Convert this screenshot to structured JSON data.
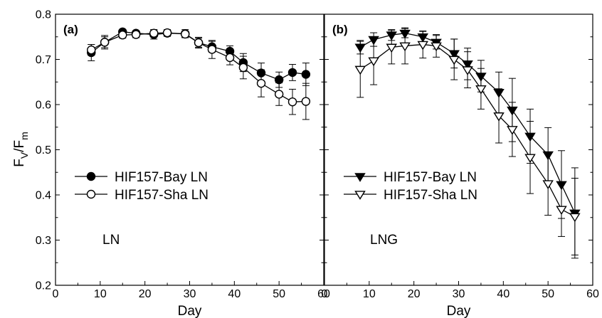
{
  "chart_data": [
    {
      "type": "line",
      "panel_label": "(a)",
      "annotation": "LN",
      "xlabel": "Day",
      "ylabel": "Fv/Fm",
      "ylabel_main": "F",
      "ylabel_sub1": "V",
      "ylabel_sep": "/F",
      "ylabel_sub2": "m",
      "xlim": [
        0,
        60
      ],
      "ylim": [
        0.2,
        0.8
      ],
      "xticks": [
        "0",
        "10",
        "20",
        "30",
        "40",
        "50",
        "60"
      ],
      "yticks": [
        "0.2",
        "0.3",
        "0.4",
        "0.5",
        "0.6",
        "0.7",
        "0.8"
      ],
      "legend_position": "lower-left",
      "series": [
        {
          "name": "HIF157-Bay LN",
          "marker": "circle",
          "filled": true,
          "x": [
            8,
            11,
            15,
            18,
            22,
            25,
            29,
            32,
            35,
            39,
            42,
            46,
            50,
            53,
            56
          ],
          "y": [
            0.715,
            0.738,
            0.761,
            0.758,
            0.755,
            0.758,
            0.757,
            0.737,
            0.728,
            0.718,
            0.693,
            0.67,
            0.655,
            0.671,
            0.667
          ],
          "err": [
            0.018,
            0.012,
            0.005,
            0.005,
            0.01,
            0.007,
            0.009,
            0.01,
            0.012,
            0.012,
            0.02,
            0.022,
            0.017,
            0.018,
            0.025
          ]
        },
        {
          "name": "HIF157-Sha LN",
          "marker": "circle",
          "filled": false,
          "x": [
            8,
            11,
            15,
            18,
            22,
            25,
            29,
            32,
            35,
            39,
            42,
            46,
            50,
            53,
            56
          ],
          "y": [
            0.721,
            0.738,
            0.754,
            0.755,
            0.758,
            0.759,
            0.756,
            0.737,
            0.722,
            0.704,
            0.682,
            0.647,
            0.623,
            0.606,
            0.607
          ],
          "err": [
            0.012,
            0.015,
            0.007,
            0.007,
            0.008,
            0.007,
            0.007,
            0.012,
            0.02,
            0.016,
            0.025,
            0.03,
            0.025,
            0.028,
            0.04
          ]
        }
      ]
    },
    {
      "type": "line",
      "panel_label": "(b)",
      "annotation": "LNG",
      "xlabel": "Day",
      "xlim": [
        0,
        60
      ],
      "ylim": [
        0.2,
        0.8
      ],
      "xticks": [
        "0",
        "10",
        "20",
        "30",
        "40",
        "50",
        "60"
      ],
      "legend_position": "lower-left",
      "series": [
        {
          "name": "HIF157-Bay LN",
          "marker": "triangle-down",
          "filled": true,
          "x": [
            8,
            11,
            15,
            18,
            22,
            25,
            29,
            32,
            35,
            39,
            42,
            46,
            50,
            53,
            56
          ],
          "y": [
            0.727,
            0.744,
            0.754,
            0.758,
            0.75,
            0.738,
            0.713,
            0.69,
            0.663,
            0.627,
            0.588,
            0.53,
            0.489,
            0.423,
            0.36
          ],
          "err": [
            0.015,
            0.015,
            0.012,
            0.01,
            0.012,
            0.015,
            0.032,
            0.035,
            0.035,
            0.045,
            0.07,
            0.06,
            0.06,
            0.075,
            0.1
          ]
        },
        {
          "name": "HIF157-Sha LN",
          "marker": "triangle-down",
          "filled": false,
          "x": [
            8,
            11,
            15,
            18,
            22,
            25,
            29,
            32,
            35,
            39,
            42,
            46,
            50,
            53,
            56
          ],
          "y": [
            0.678,
            0.697,
            0.727,
            0.73,
            0.733,
            0.73,
            0.7,
            0.677,
            0.635,
            0.575,
            0.545,
            0.483,
            0.425,
            0.368,
            0.352
          ],
          "err": [
            0.062,
            0.053,
            0.037,
            0.04,
            0.03,
            0.025,
            0.045,
            0.04,
            0.045,
            0.06,
            0.06,
            0.08,
            0.07,
            0.06,
            0.085
          ]
        }
      ]
    }
  ]
}
